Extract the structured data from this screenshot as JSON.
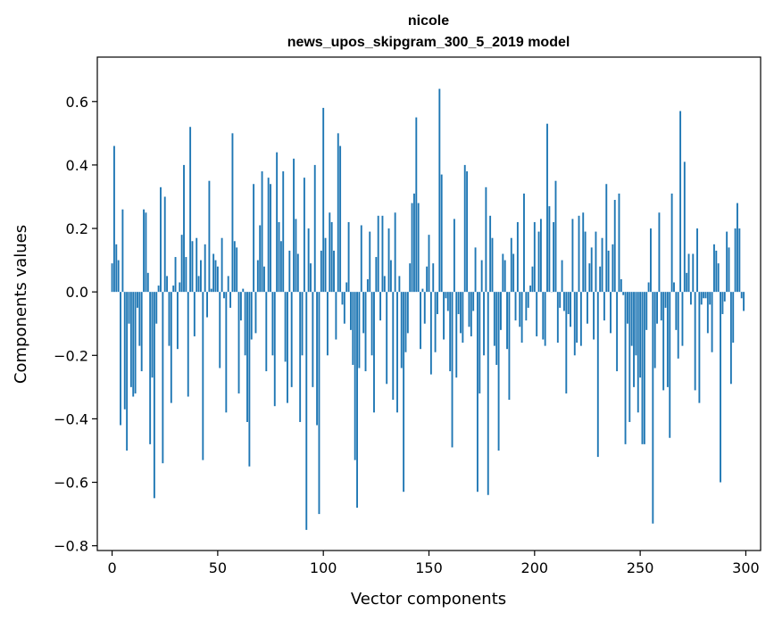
{
  "chart_data": {
    "type": "bar",
    "title_line1": "nicole",
    "title_line2": "news_upos_skipgram_300_5_2019 model",
    "xlabel": "Vector components",
    "ylabel": "Components values",
    "xlim": [
      -7,
      307
    ],
    "ylim": [
      -0.815,
      0.74
    ],
    "xticks": [
      0,
      50,
      100,
      150,
      200,
      250,
      300
    ],
    "xtick_labels": [
      "0",
      "50",
      "100",
      "150",
      "200",
      "250",
      "300"
    ],
    "yticks": [
      -0.8,
      -0.6,
      -0.4,
      -0.2,
      0.0,
      0.2,
      0.4,
      0.6
    ],
    "ytick_labels": [
      "−0.8",
      "−0.6",
      "−0.4",
      "−0.2",
      "0.0",
      "0.2",
      "0.4",
      "0.6"
    ],
    "bar_color": "#1f77b4",
    "grid": false,
    "values": [
      0.09,
      0.46,
      0.15,
      0.1,
      -0.42,
      0.26,
      -0.37,
      -0.5,
      -0.1,
      -0.3,
      -0.33,
      -0.32,
      -0.05,
      -0.17,
      -0.25,
      0.26,
      0.25,
      0.06,
      -0.48,
      -0.27,
      -0.65,
      -0.1,
      0.02,
      0.33,
      -0.54,
      0.3,
      0.05,
      -0.17,
      -0.35,
      0.02,
      0.11,
      -0.18,
      0.03,
      0.18,
      0.4,
      0.11,
      -0.33,
      0.52,
      0.16,
      -0.14,
      0.17,
      0.05,
      0.1,
      -0.53,
      0.15,
      -0.08,
      0.35,
      0.01,
      0.12,
      0.1,
      0.08,
      -0.24,
      0.17,
      -0.02,
      -0.38,
      0.05,
      -0.05,
      0.5,
      0.16,
      0.14,
      -0.32,
      -0.09,
      0.01,
      -0.2,
      -0.41,
      -0.55,
      -0.15,
      0.34,
      -0.13,
      0.1,
      0.21,
      0.38,
      0.08,
      -0.25,
      0.36,
      0.34,
      -0.2,
      -0.36,
      0.44,
      0.22,
      0.16,
      0.38,
      -0.22,
      -0.35,
      0.13,
      -0.3,
      0.42,
      0.23,
      0.12,
      -0.41,
      -0.2,
      0.36,
      -0.75,
      0.2,
      0.09,
      -0.3,
      0.4,
      -0.42,
      -0.7,
      0.13,
      0.58,
      0.17,
      -0.2,
      0.25,
      0.22,
      0.13,
      -0.15,
      0.5,
      0.46,
      -0.04,
      -0.1,
      0.03,
      0.22,
      -0.12,
      -0.23,
      -0.53,
      -0.68,
      -0.24,
      0.21,
      -0.13,
      -0.25,
      0.04,
      0.19,
      -0.2,
      -0.38,
      0.11,
      0.24,
      -0.09,
      0.24,
      0.05,
      -0.29,
      0.2,
      0.1,
      -0.34,
      0.25,
      -0.38,
      0.05,
      -0.24,
      -0.63,
      -0.19,
      -0.13,
      0.09,
      0.28,
      0.31,
      0.55,
      0.28,
      -0.18,
      0.01,
      -0.1,
      0.08,
      0.18,
      -0.26,
      0.09,
      -0.19,
      -0.07,
      0.64,
      0.37,
      -0.15,
      -0.02,
      -0.06,
      -0.25,
      -0.49,
      0.23,
      -0.27,
      -0.07,
      -0.13,
      -0.16,
      0.4,
      0.38,
      -0.11,
      -0.14,
      -0.06,
      0.14,
      -0.63,
      -0.32,
      0.1,
      -0.2,
      0.33,
      -0.64,
      0.24,
      0.17,
      -0.17,
      -0.23,
      -0.5,
      -0.12,
      0.12,
      0.1,
      -0.18,
      -0.34,
      0.17,
      0.12,
      -0.09,
      0.22,
      -0.11,
      -0.16,
      0.31,
      -0.09,
      -0.05,
      0.02,
      0.08,
      0.22,
      -0.14,
      0.19,
      0.23,
      -0.15,
      -0.17,
      0.53,
      0.27,
      0.0,
      0.22,
      0.35,
      -0.16,
      -0.05,
      0.1,
      -0.06,
      -0.32,
      -0.07,
      -0.11,
      0.23,
      -0.2,
      -0.16,
      0.24,
      -0.17,
      0.25,
      0.19,
      -0.1,
      0.09,
      0.14,
      -0.15,
      0.19,
      -0.52,
      0.08,
      0.17,
      -0.09,
      0.34,
      0.13,
      -0.13,
      0.15,
      0.29,
      -0.25,
      0.31,
      0.04,
      -0.01,
      -0.48,
      -0.1,
      -0.41,
      -0.17,
      -0.3,
      -0.2,
      -0.38,
      -0.27,
      -0.48,
      -0.48,
      -0.12,
      0.03,
      0.2,
      -0.73,
      -0.24,
      -0.1,
      0.25,
      -0.09,
      -0.31,
      -0.05,
      -0.3,
      -0.46,
      0.31,
      0.03,
      -0.12,
      -0.21,
      0.57,
      -0.17,
      0.41,
      0.06,
      0.12,
      -0.04,
      0.12,
      -0.31,
      0.2,
      -0.35,
      -0.04,
      -0.02,
      -0.02,
      -0.13,
      -0.04,
      -0.19,
      0.15,
      0.13,
      0.09,
      -0.6,
      -0.07,
      -0.03,
      0.19,
      0.14,
      -0.29,
      -0.16,
      0.2,
      0.28,
      0.2,
      -0.02,
      -0.06
    ]
  }
}
